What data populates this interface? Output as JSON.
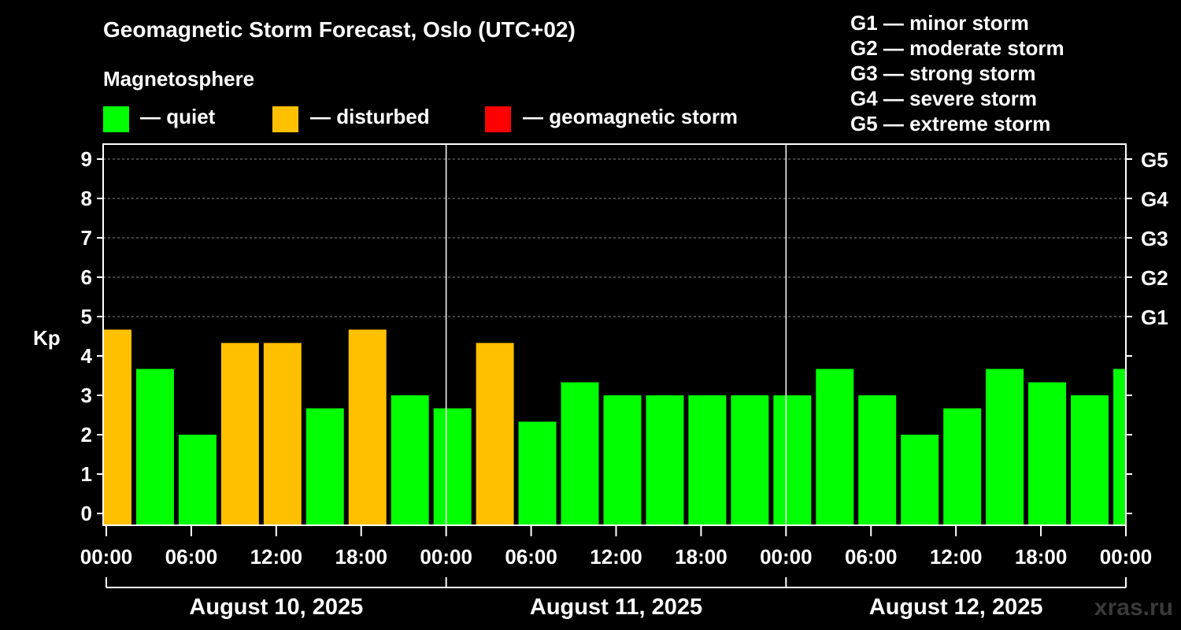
{
  "title": "Geomagnetic Storm Forecast, Oslo (UTC+02)",
  "magnetosphere": {
    "title": "Magnetosphere",
    "items": [
      {
        "label": "— quiet",
        "color": "#00ff00"
      },
      {
        "label": "— disturbed",
        "color": "#ffc000"
      },
      {
        "label": "— geomagnetic storm",
        "color": "#ff0000"
      }
    ]
  },
  "g_levels": [
    "G1 — minor storm",
    "G2 — moderate storm",
    "G3 — strong storm",
    "G4 — severe storm",
    "G5 — extreme storm"
  ],
  "watermark": "xras.ru",
  "chart_data": {
    "type": "bar",
    "title": "Geomagnetic Storm Forecast, Oslo (UTC+02)",
    "ylabel": "Kp",
    "ylim": [
      0,
      9
    ],
    "yticks": [
      "0",
      "1",
      "2",
      "3",
      "4",
      "5",
      "6",
      "7",
      "8",
      "9"
    ],
    "right_axis_labels": [
      {
        "kp": 5,
        "label": "G1"
      },
      {
        "kp": 6,
        "label": "G2"
      },
      {
        "kp": 7,
        "label": "G3"
      },
      {
        "kp": 8,
        "label": "G4"
      },
      {
        "kp": 9,
        "label": "G5"
      }
    ],
    "x_hours_range": [
      0,
      72
    ],
    "xticks": [
      "00:00",
      "06:00",
      "12:00",
      "18:00",
      "00:00",
      "06:00",
      "12:00",
      "18:00",
      "00:00",
      "06:00",
      "12:00",
      "18:00",
      "00:00"
    ],
    "days": [
      "August 10, 2025",
      "August 11, 2025",
      "August 12, 2025"
    ],
    "bar_start_hours": [
      -1,
      2,
      5,
      8,
      11,
      14,
      17,
      20,
      23,
      26,
      29,
      32,
      35,
      38,
      41,
      44,
      47,
      50,
      53,
      56,
      59,
      62,
      65,
      68,
      71
    ],
    "bar_width_hours": 3,
    "values": [
      4.67,
      3.67,
      2.0,
      4.33,
      4.33,
      2.67,
      4.67,
      3.0,
      2.67,
      4.33,
      2.33,
      3.33,
      3.0,
      3.0,
      3.0,
      3.0,
      3.0,
      3.67,
      3.0,
      2.0,
      2.67,
      3.67,
      3.33,
      3.0,
      3.67
    ],
    "status": [
      "disturbed",
      "quiet",
      "quiet",
      "disturbed",
      "disturbed",
      "quiet",
      "disturbed",
      "quiet",
      "quiet",
      "disturbed",
      "quiet",
      "quiet",
      "quiet",
      "quiet",
      "quiet",
      "quiet",
      "quiet",
      "quiet",
      "quiet",
      "quiet",
      "quiet",
      "quiet",
      "quiet",
      "quiet",
      "quiet"
    ],
    "status_colors": {
      "quiet": "#00ff00",
      "disturbed": "#ffc000",
      "storm": "#ff0000"
    }
  }
}
